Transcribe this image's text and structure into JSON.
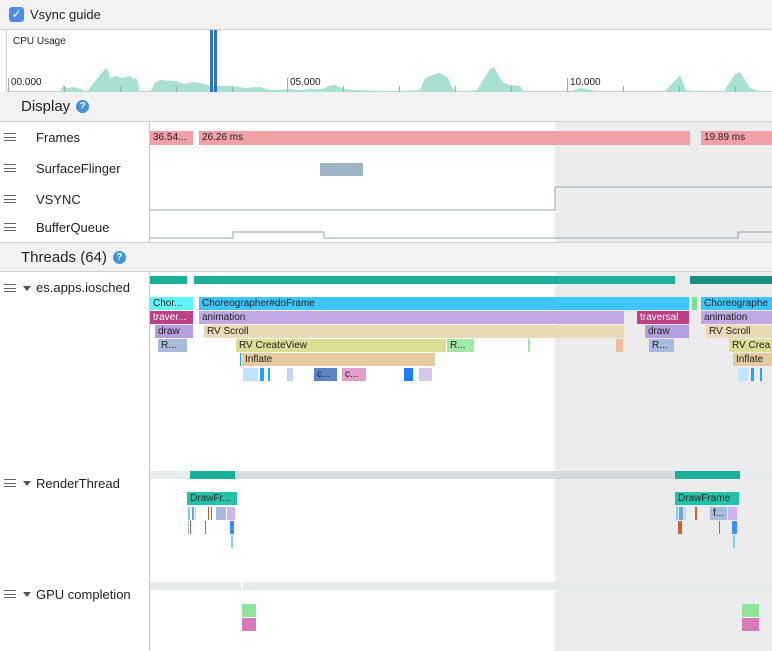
{
  "toolbar": {
    "vsync_guide_label": "Vsync guide",
    "vsync_guide_checked": true
  },
  "cpu": {
    "title": "CPU Usage",
    "ticks": [
      "00.000",
      "05.000",
      "10.000"
    ]
  },
  "display": {
    "title": "Display",
    "help": "?",
    "tracks": [
      "Frames",
      "SurfaceFlinger",
      "VSYNC",
      "BufferQueue"
    ],
    "frames": [
      "36.54...",
      "26.26 ms",
      "19.89 ms"
    ]
  },
  "threads": {
    "title": "Threads (64)",
    "help": "?",
    "list": [
      {
        "name": "es.apps.iosched",
        "slices": [
          "Chor...",
          "Choreographer#doFrame",
          "Choreographe",
          "traver...",
          "animation",
          "traversal",
          "animation",
          "draw",
          "RV Scroll",
          "draw",
          "RV Scroll",
          "R...",
          "RV CreateView",
          "R...",
          "R...",
          "RV Crea",
          "Inflate",
          "Inflate",
          "c...",
          "c..."
        ]
      },
      {
        "name": "RenderThread",
        "slices": [
          "DrawFr...",
          "DrawFrame",
          "f..."
        ]
      },
      {
        "name": "GPU completion"
      }
    ]
  },
  "colors": {
    "frame": "#f2a0a8",
    "teal": "#1aaf98",
    "doFrame": "#3ec5fb",
    "traversal": "#bd3f86",
    "animation": "#c2a8e2",
    "rvscroll": "#e8dab7",
    "shade": "#ececec",
    "cpu": "#a8e0d4"
  }
}
